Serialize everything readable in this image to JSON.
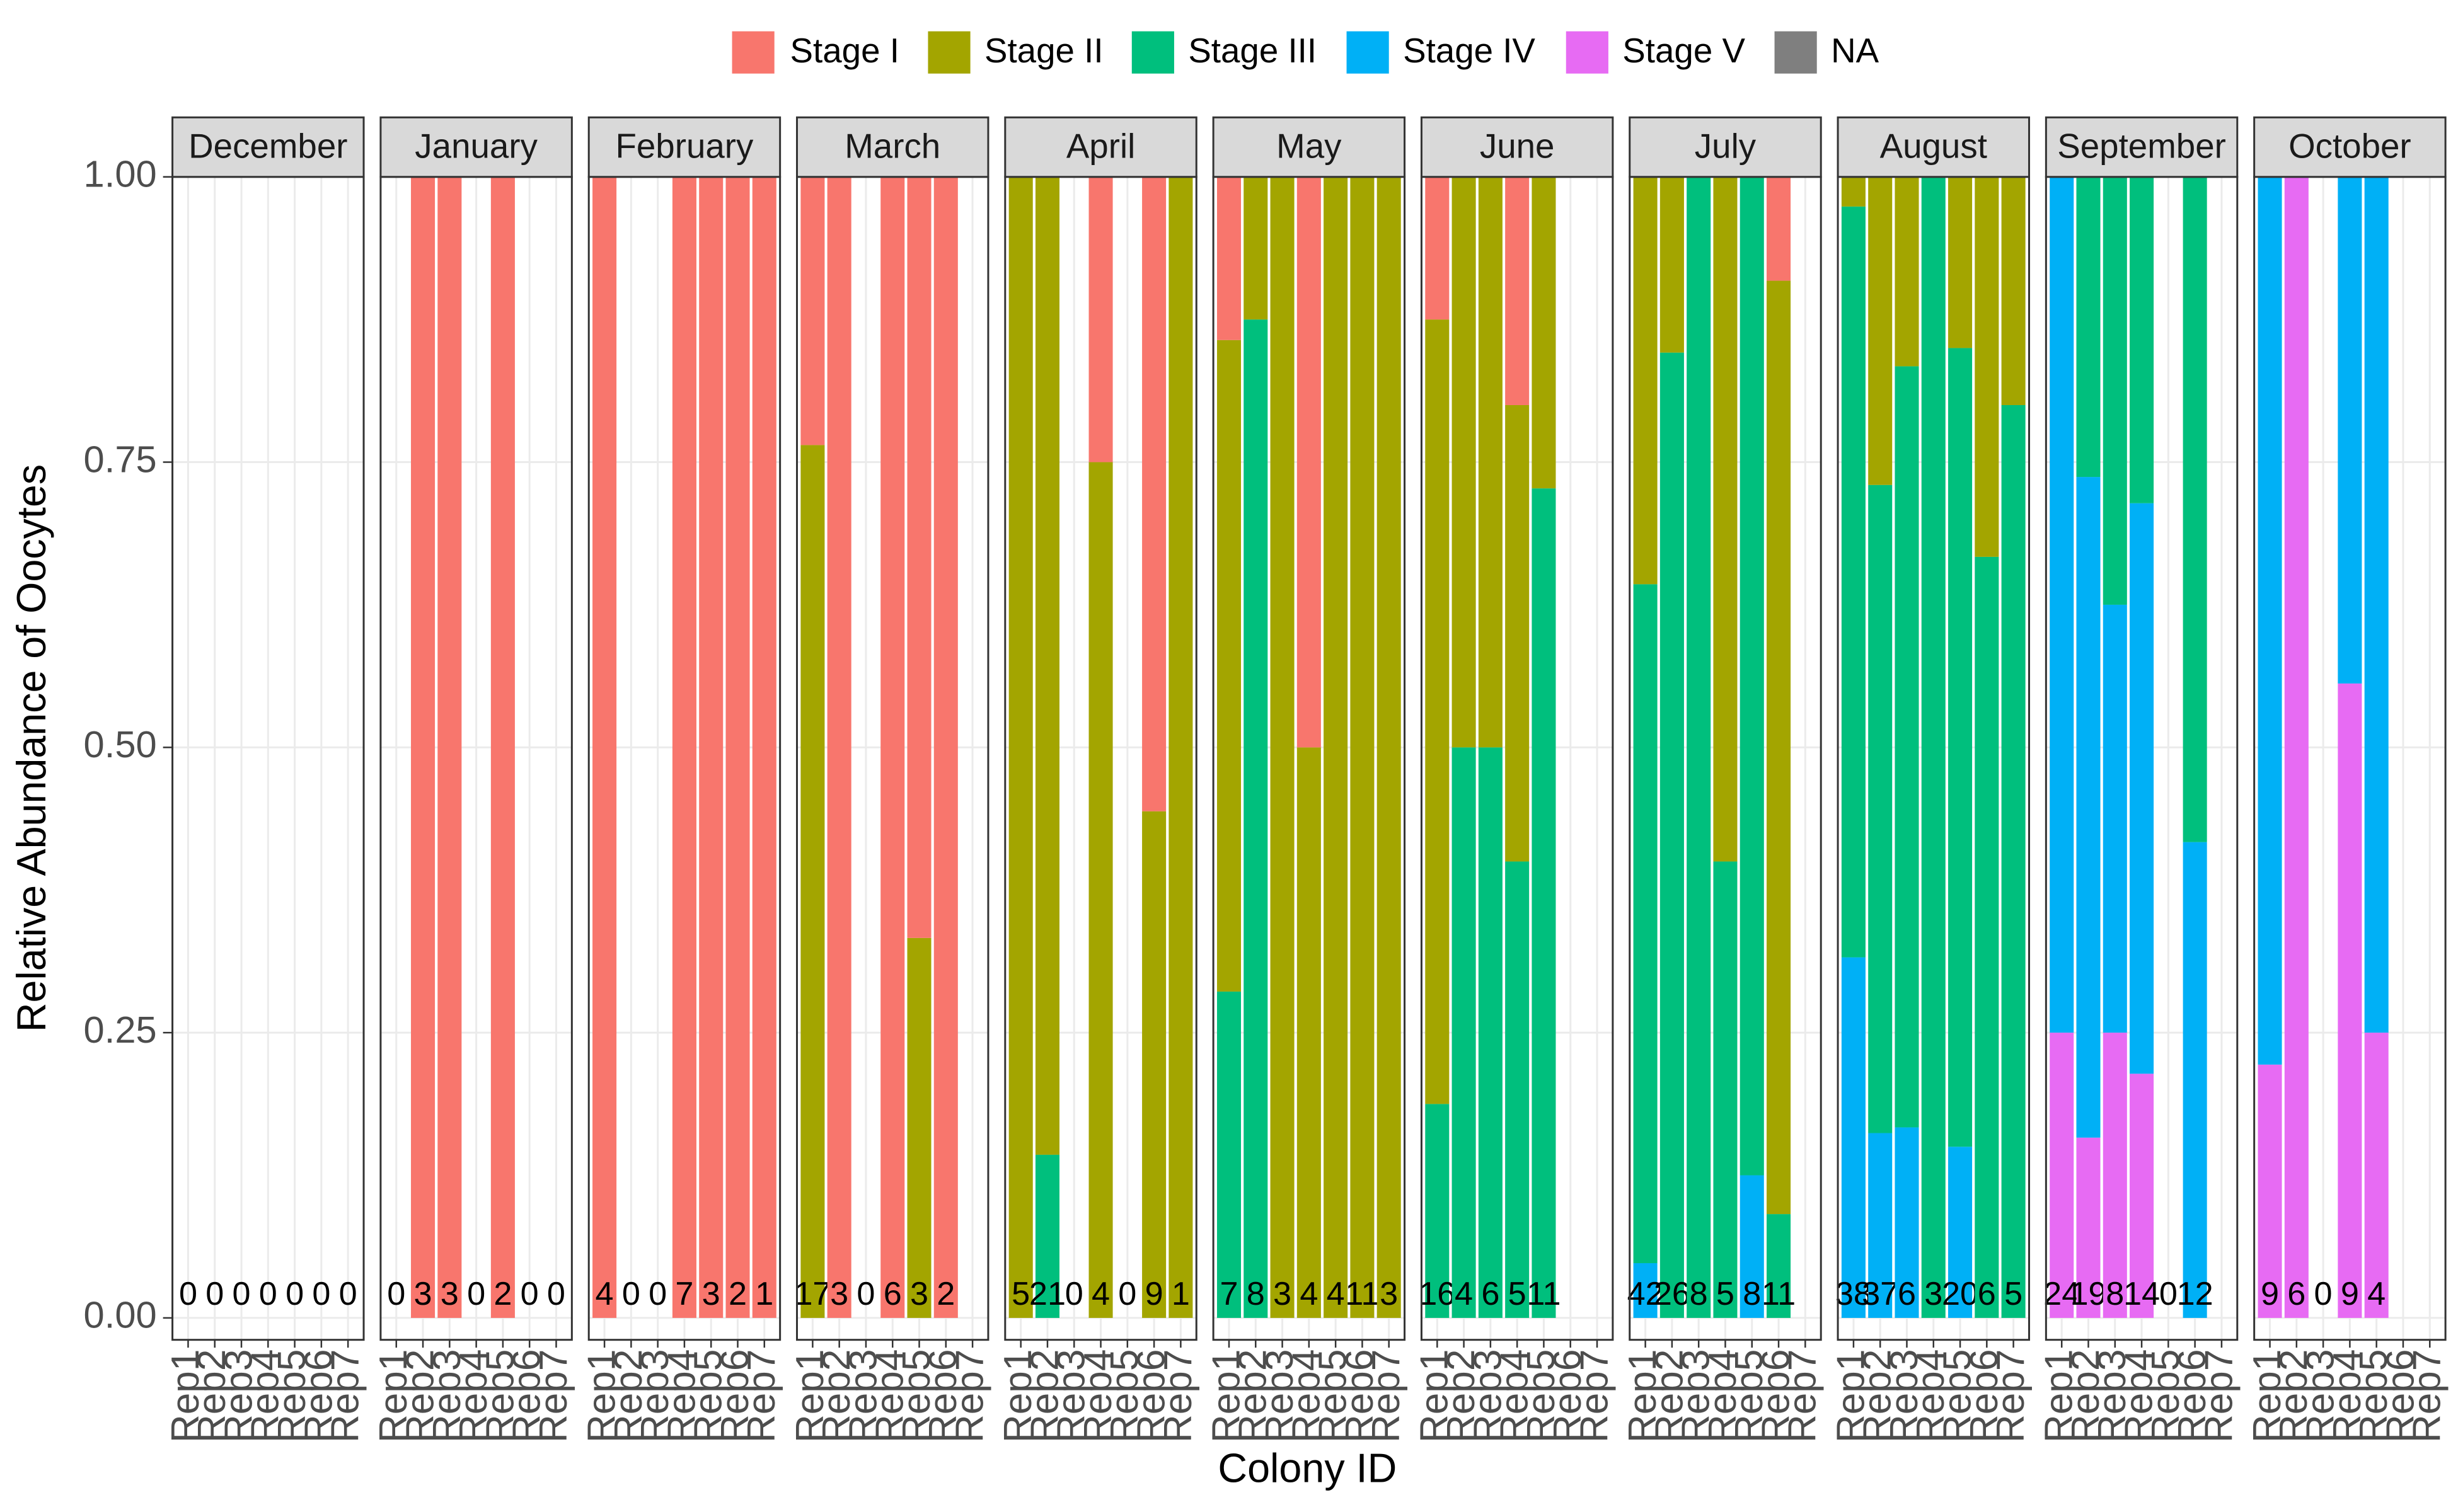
{
  "chart_data": {
    "type": "bar",
    "x_label": "Colony ID",
    "y_label": "Relative Abundance of Oocytes",
    "categories": [
      "Rep1",
      "Rep2",
      "Rep3",
      "Rep4",
      "Rep5",
      "Rep6",
      "Rep7"
    ],
    "series": [
      {
        "name": "Stage I",
        "color": "#F8766D"
      },
      {
        "name": "Stage II",
        "color": "#A3A500"
      },
      {
        "name": "Stage III",
        "color": "#00BF7D"
      },
      {
        "name": "Stage IV",
        "color": "#00B0F6"
      },
      {
        "name": "Stage V",
        "color": "#E76BF3"
      },
      {
        "name": "NA",
        "color": "#7F7F7F"
      }
    ],
    "ylim": [
      0,
      1
    ],
    "yticks": [
      {
        "value": 0,
        "label": "0.00"
      },
      {
        "value": 0.25,
        "label": "0.25"
      },
      {
        "value": 0.5,
        "label": "0.50"
      },
      {
        "value": 0.75,
        "label": "0.75"
      },
      {
        "value": 1,
        "label": "1.00"
      }
    ],
    "grid": true,
    "legend_position": "top",
    "facets": [
      {
        "title": "December",
        "counts": [
          0,
          0,
          0,
          0,
          0,
          0,
          0
        ],
        "values": [
          [
            0,
            0,
            0,
            0,
            0,
            0,
            0
          ],
          [
            0,
            0,
            0,
            0,
            0,
            0,
            0
          ],
          [
            0,
            0,
            0,
            0,
            0,
            0,
            0
          ],
          [
            0,
            0,
            0,
            0,
            0,
            0,
            0
          ],
          [
            0,
            0,
            0,
            0,
            0,
            0,
            0
          ]
        ]
      },
      {
        "title": "January",
        "counts": [
          0,
          3,
          3,
          0,
          2,
          0,
          0
        ],
        "values": [
          [
            0,
            1,
            1,
            0,
            1,
            0,
            0
          ],
          [
            0,
            0,
            0,
            0,
            0,
            0,
            0
          ],
          [
            0,
            0,
            0,
            0,
            0,
            0,
            0
          ],
          [
            0,
            0,
            0,
            0,
            0,
            0,
            0
          ],
          [
            0,
            0,
            0,
            0,
            0,
            0,
            0
          ]
        ]
      },
      {
        "title": "February",
        "counts": [
          4,
          0,
          0,
          7,
          3,
          2,
          1
        ],
        "values": [
          [
            1,
            0,
            0,
            1,
            1,
            1,
            1
          ],
          [
            0,
            0,
            0,
            0,
            0,
            0,
            0
          ],
          [
            0,
            0,
            0,
            0,
            0,
            0,
            0
          ],
          [
            0,
            0,
            0,
            0,
            0,
            0,
            0
          ],
          [
            0,
            0,
            0,
            0,
            0,
            0,
            0
          ]
        ]
      },
      {
        "title": "March",
        "counts": [
          17,
          3,
          0,
          6,
          3,
          2,
          null
        ],
        "values": [
          [
            0.235,
            1,
            0,
            1,
            0.667,
            1,
            0
          ],
          [
            0.765,
            0,
            0,
            0,
            0.333,
            0,
            0
          ],
          [
            0,
            0,
            0,
            0,
            0,
            0,
            0
          ],
          [
            0,
            0,
            0,
            0,
            0,
            0,
            0
          ],
          [
            0,
            0,
            0,
            0,
            0,
            0,
            0
          ]
        ]
      },
      {
        "title": "April",
        "counts": [
          5,
          21,
          0,
          4,
          0,
          9,
          1
        ],
        "values": [
          [
            0,
            0,
            0,
            0.25,
            0,
            0.556,
            0
          ],
          [
            1,
            0.857,
            0,
            0.75,
            0,
            0.444,
            1
          ],
          [
            0,
            0.143,
            0,
            0,
            0,
            0,
            0
          ],
          [
            0,
            0,
            0,
            0,
            0,
            0,
            0
          ],
          [
            0,
            0,
            0,
            0,
            0,
            0,
            0
          ]
        ]
      },
      {
        "title": "May",
        "counts": [
          7,
          8,
          3,
          4,
          4,
          11,
          3
        ],
        "values": [
          [
            0.143,
            0,
            0,
            0.5,
            0,
            0,
            0
          ],
          [
            0.571,
            0.125,
            1,
            0.5,
            1,
            1,
            1
          ],
          [
            0.286,
            0.875,
            0,
            0,
            0,
            0,
            0
          ],
          [
            0,
            0,
            0,
            0,
            0,
            0,
            0
          ],
          [
            0,
            0,
            0,
            0,
            0,
            0,
            0
          ]
        ]
      },
      {
        "title": "June",
        "counts": [
          16,
          4,
          6,
          5,
          11,
          null,
          null
        ],
        "values": [
          [
            0.125,
            0,
            0,
            0.2,
            0,
            0,
            0
          ],
          [
            0.6875,
            0.5,
            0.5,
            0.4,
            0.273,
            0,
            0
          ],
          [
            0.1875,
            0.5,
            0.5,
            0.4,
            0.727,
            0,
            0
          ],
          [
            0,
            0,
            0,
            0,
            0,
            0,
            0
          ],
          [
            0,
            0,
            0,
            0,
            0,
            0,
            0
          ]
        ]
      },
      {
        "title": "July",
        "counts": [
          42,
          26,
          8,
          5,
          8,
          11,
          null
        ],
        "values": [
          [
            0,
            0,
            0,
            0,
            0,
            0.091,
            0
          ],
          [
            0.357,
            0.154,
            0,
            0.6,
            0,
            0.818,
            0
          ],
          [
            0.595,
            0.846,
            1,
            0.4,
            0.875,
            0.091,
            0
          ],
          [
            0.048,
            0,
            0,
            0,
            0.125,
            0,
            0
          ],
          [
            0,
            0,
            0,
            0,
            0,
            0,
            0
          ]
        ]
      },
      {
        "title": "August",
        "counts": [
          38,
          37,
          6,
          3,
          20,
          6,
          5
        ],
        "values": [
          [
            0,
            0,
            0,
            0,
            0,
            0,
            0
          ],
          [
            0.026,
            0.27,
            0.167,
            0,
            0.15,
            0.333,
            0.2
          ],
          [
            0.658,
            0.568,
            0.667,
            1,
            0.7,
            0.667,
            0.8
          ],
          [
            0.316,
            0.162,
            0.167,
            0,
            0.15,
            0,
            0
          ],
          [
            0,
            0,
            0,
            0,
            0,
            0,
            0
          ]
        ]
      },
      {
        "title": "September",
        "counts": [
          24,
          19,
          8,
          14,
          0,
          12,
          null
        ],
        "values": [
          [
            0,
            0,
            0,
            0,
            0,
            0,
            0
          ],
          [
            0,
            0,
            0,
            0,
            0,
            0,
            0
          ],
          [
            0,
            0.263,
            0.375,
            0.286,
            0,
            0.583,
            0
          ],
          [
            0.75,
            0.579,
            0.375,
            0.5,
            0,
            0.417,
            0
          ],
          [
            0.25,
            0.158,
            0.25,
            0.214,
            0,
            0,
            0
          ]
        ]
      },
      {
        "title": "October",
        "counts": [
          9,
          6,
          0,
          9,
          4,
          null,
          null
        ],
        "values": [
          [
            0,
            0,
            0,
            0,
            0,
            0,
            0
          ],
          [
            0,
            0,
            0,
            0,
            0,
            0,
            0
          ],
          [
            0,
            0,
            0,
            0,
            0,
            0,
            0
          ],
          [
            0.778,
            0,
            0,
            0.444,
            0.75,
            0,
            0
          ],
          [
            0.222,
            1,
            0,
            0.556,
            0.25,
            0,
            0
          ]
        ]
      }
    ]
  }
}
